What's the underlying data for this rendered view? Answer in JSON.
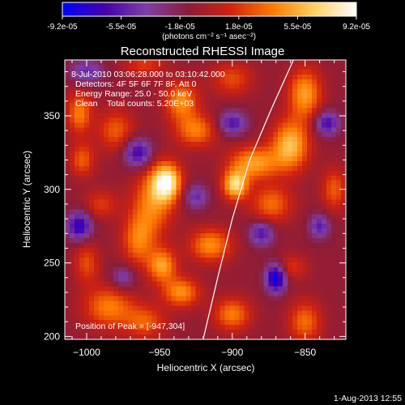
{
  "chart_data": {
    "type": "heatmap",
    "title": "Reconstructed RHESSI Image",
    "xlabel": "Heliocentric X (arcsec)",
    "ylabel": "Heliocentric Y (arcsec)",
    "xlim": [
      -1015,
      -822
    ],
    "ylim": [
      198,
      388
    ],
    "x_ticks": [
      -1000,
      -950,
      -900,
      -850
    ],
    "y_ticks": [
      200,
      250,
      300,
      350
    ],
    "colorbar": {
      "ticks": [
        "-9.2e-05",
        "-5.5e-05",
        "-1.8e-05",
        "1.8e-05",
        "5.5e-05",
        "9.2e-05"
      ],
      "range": [
        -9.2e-05,
        9.2e-05
      ],
      "units_label": "(photons cm⁻² s⁻¹ asec⁻²)",
      "stops": [
        "#0000ff",
        "#4400aa",
        "#7e3fa6",
        "#8a1c3a",
        "#d0220f",
        "#ff7a00",
        "#ffd060",
        "#ffffff"
      ]
    },
    "annotations": [
      "8-Jul-2010 03:06:28.000 to 03:10:42.000",
      "Detectors: 4F 5F 6F 7F 8F, Att 0",
      "Energy Range: 25.0 - 50.0 keV",
      "Clean    Total counts: 5.20E+03"
    ],
    "peak_label": "Position of Peak = [-947,304]",
    "peak": [
      -947,
      304
    ],
    "limb_curve": [
      [
        -920,
        198
      ],
      [
        -910,
        240
      ],
      [
        -900,
        280
      ],
      [
        -888,
        320
      ],
      [
        -873,
        355
      ],
      [
        -858,
        388
      ]
    ],
    "sources": [
      {
        "x": -945,
        "y": 305,
        "amp": 9.2e-05,
        "sx": 7,
        "sy": 9
      },
      {
        "x": -955,
        "y": 290,
        "amp": 5e-05,
        "sx": 10,
        "sy": 16
      },
      {
        "x": -965,
        "y": 265,
        "amp": 4.5e-05,
        "sx": 8,
        "sy": 12
      },
      {
        "x": -948,
        "y": 248,
        "amp": 6e-05,
        "sx": 7,
        "sy": 8
      },
      {
        "x": -935,
        "y": 230,
        "amp": 5.5e-05,
        "sx": 9,
        "sy": 7
      },
      {
        "x": -915,
        "y": 262,
        "amp": 5.5e-05,
        "sx": 10,
        "sy": 8
      },
      {
        "x": -898,
        "y": 303,
        "amp": 8e-05,
        "sx": 6,
        "sy": 7
      },
      {
        "x": -885,
        "y": 318,
        "amp": 6e-05,
        "sx": 12,
        "sy": 8
      },
      {
        "x": -860,
        "y": 330,
        "amp": 7e-05,
        "sx": 9,
        "sy": 12
      },
      {
        "x": -850,
        "y": 365,
        "amp": 6e-05,
        "sx": 8,
        "sy": 12
      },
      {
        "x": -873,
        "y": 290,
        "amp": 4.5e-05,
        "sx": 10,
        "sy": 9
      },
      {
        "x": -860,
        "y": 247,
        "amp": 3e-05,
        "sx": 8,
        "sy": 6
      },
      {
        "x": -900,
        "y": 215,
        "amp": 5e-05,
        "sx": 9,
        "sy": 8
      },
      {
        "x": -925,
        "y": 340,
        "amp": 5e-05,
        "sx": 10,
        "sy": 8
      },
      {
        "x": -935,
        "y": 360,
        "amp": 5.5e-05,
        "sx": 8,
        "sy": 9
      },
      {
        "x": -980,
        "y": 340,
        "amp": 4e-05,
        "sx": 9,
        "sy": 10
      },
      {
        "x": -1005,
        "y": 352,
        "amp": 5e-05,
        "sx": 6,
        "sy": 10
      },
      {
        "x": -1003,
        "y": 320,
        "amp": 4e-05,
        "sx": 6,
        "sy": 8
      },
      {
        "x": -990,
        "y": 290,
        "amp": 3e-05,
        "sx": 8,
        "sy": 7
      },
      {
        "x": -985,
        "y": 220,
        "amp": 5e-05,
        "sx": 12,
        "sy": 10
      },
      {
        "x": -1000,
        "y": 250,
        "amp": 3.5e-05,
        "sx": 6,
        "sy": 10
      },
      {
        "x": -960,
        "y": 210,
        "amp": 4e-05,
        "sx": 10,
        "sy": 8
      },
      {
        "x": -960,
        "y": 385,
        "amp": 3e-05,
        "sx": 10,
        "sy": 6
      },
      {
        "x": -830,
        "y": 300,
        "amp": 4e-05,
        "sx": 6,
        "sy": 10
      },
      {
        "x": -850,
        "y": 210,
        "amp": 4.5e-05,
        "sx": 8,
        "sy": 10
      },
      {
        "x": -900,
        "y": 375,
        "amp": 3.5e-05,
        "sx": 10,
        "sy": 8
      },
      {
        "x": -870,
        "y": 240,
        "amp": -8.5e-05,
        "sx": 5,
        "sy": 7
      },
      {
        "x": -965,
        "y": 325,
        "amp": -6e-05,
        "sx": 7,
        "sy": 7
      },
      {
        "x": -1005,
        "y": 275,
        "amp": -6.5e-05,
        "sx": 6,
        "sy": 7
      },
      {
        "x": -900,
        "y": 345,
        "amp": -5e-05,
        "sx": 7,
        "sy": 6
      },
      {
        "x": -835,
        "y": 345,
        "amp": -5.5e-05,
        "sx": 6,
        "sy": 6
      },
      {
        "x": -925,
        "y": 295,
        "amp": -4e-05,
        "sx": 6,
        "sy": 6
      },
      {
        "x": -880,
        "y": 270,
        "amp": -5e-05,
        "sx": 6,
        "sy": 6
      },
      {
        "x": -1000,
        "y": 380,
        "amp": -4e-05,
        "sx": 8,
        "sy": 6
      },
      {
        "x": -840,
        "y": 275,
        "amp": -4.5e-05,
        "sx": 5,
        "sy": 6
      },
      {
        "x": -975,
        "y": 240,
        "amp": -3.5e-05,
        "sx": 6,
        "sy": 6
      }
    ]
  },
  "footer_date": "1-Aug-2013 12:55"
}
